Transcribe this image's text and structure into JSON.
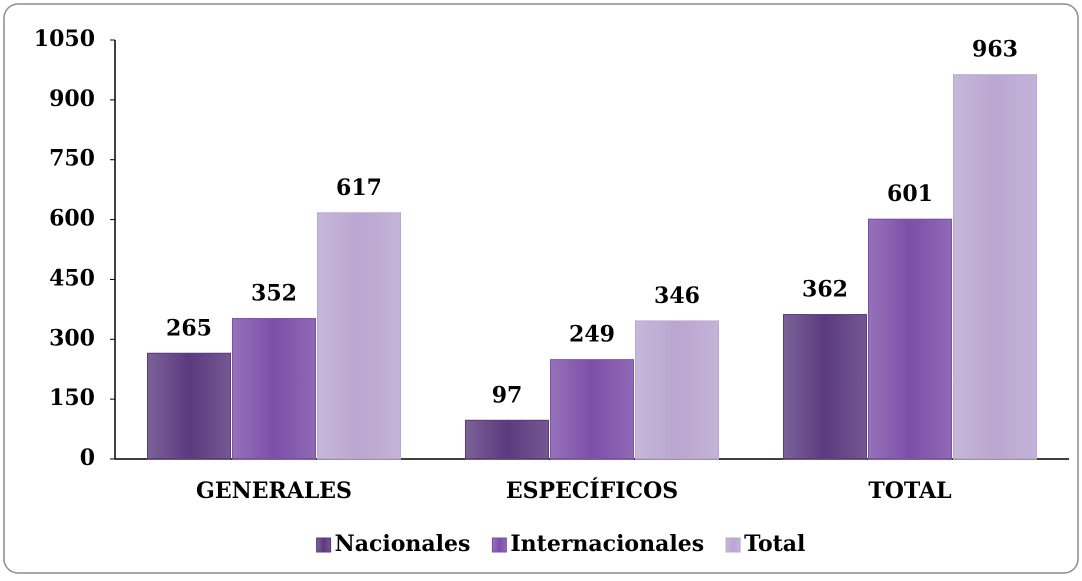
{
  "chart_data": {
    "type": "bar",
    "categories": [
      "GENERALES",
      "ESPECÍFICOS",
      "TOTAL"
    ],
    "series": [
      {
        "name": "Nacionales",
        "color": "#5b3a7e",
        "values": [
          265,
          97,
          362
        ]
      },
      {
        "name": "Internacionales",
        "color": "#7c4fa8",
        "values": [
          352,
          249,
          601
        ]
      },
      {
        "name": "Total",
        "color": "#b9a6d1",
        "values": [
          617,
          346,
          963
        ]
      }
    ],
    "ylim": [
      0,
      1050
    ],
    "yticks": [
      0,
      150,
      300,
      450,
      600,
      750,
      900,
      1050
    ],
    "grid": false,
    "legend": "bottom"
  }
}
